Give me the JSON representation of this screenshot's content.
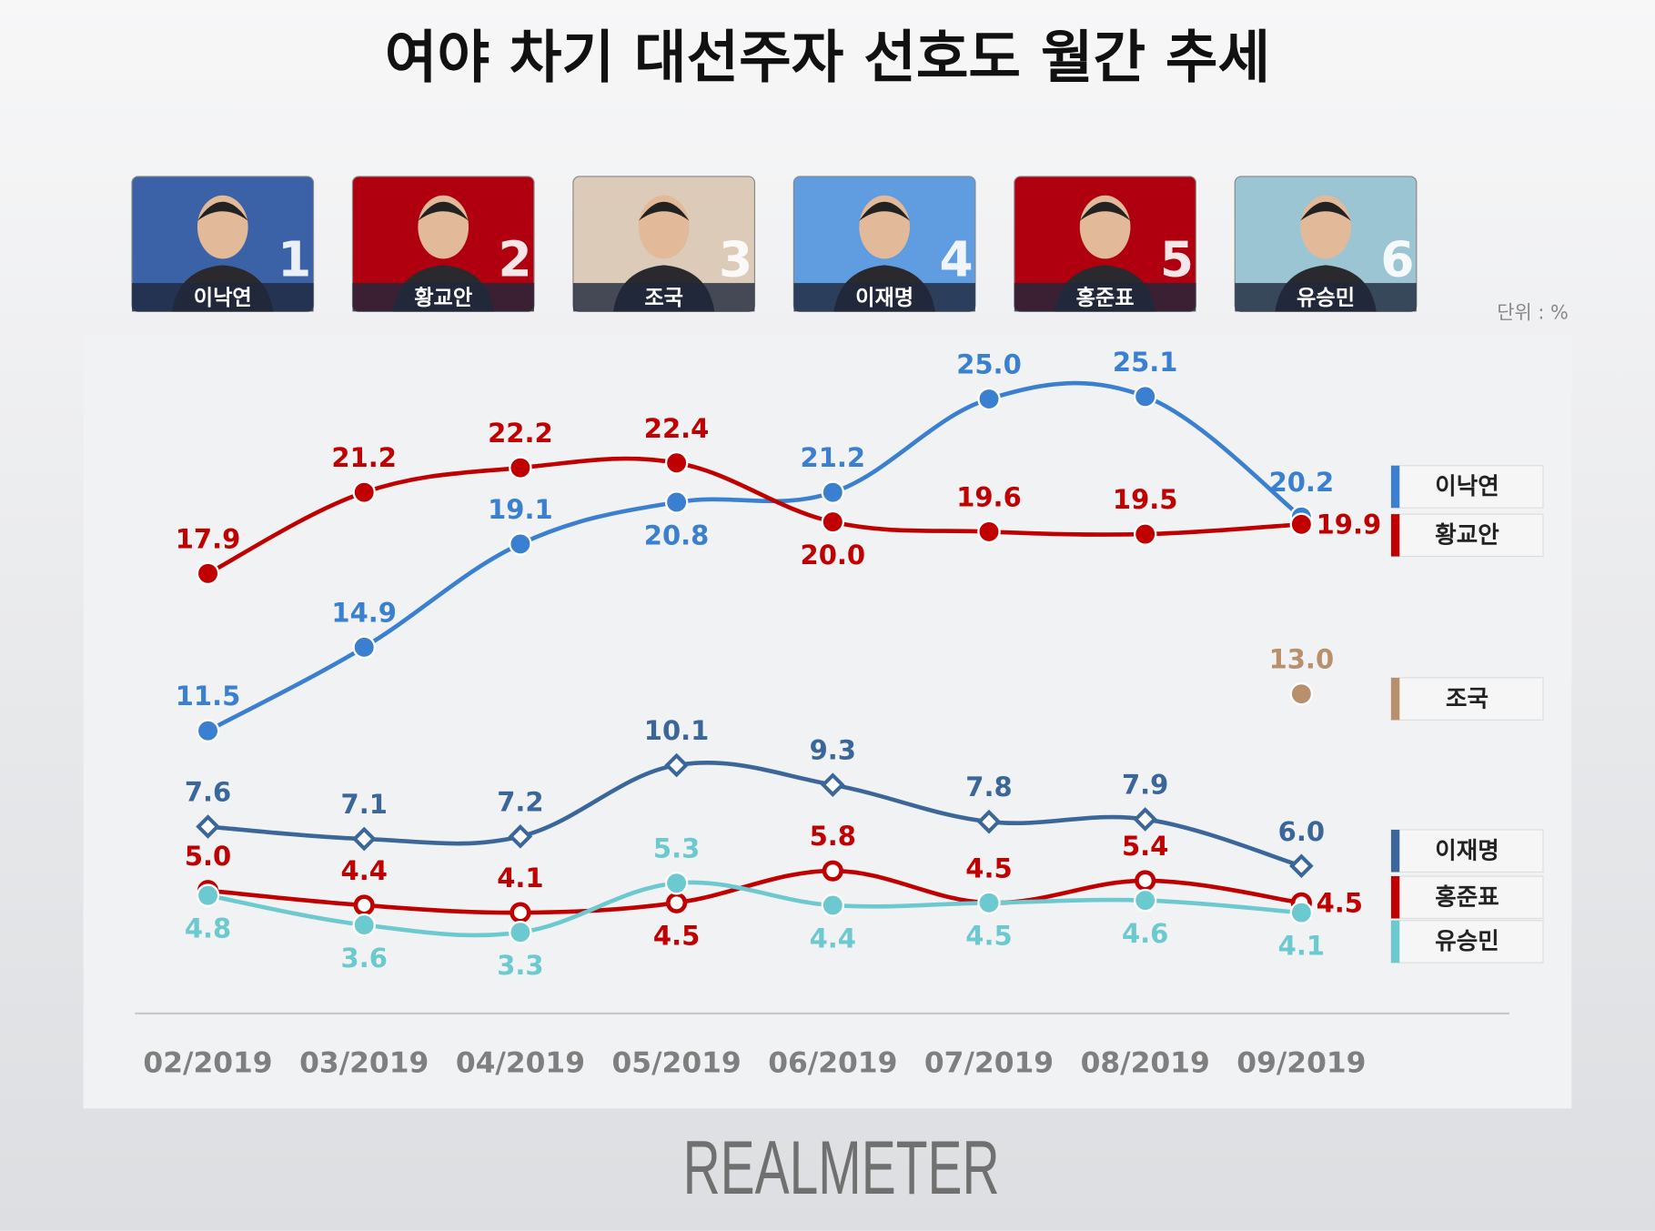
{
  "title": "여야 차기 대선주자 선호도 월간 추세",
  "unit": "단위 : %",
  "brand": "REALMETER",
  "candidates": [
    {
      "name": "이낙연",
      "rank": "1"
    },
    {
      "name": "황교안",
      "rank": "2"
    },
    {
      "name": "조국",
      "rank": "3"
    },
    {
      "name": "이재명",
      "rank": "4"
    },
    {
      "name": "홍준표",
      "rank": "5"
    },
    {
      "name": "유승민",
      "rank": "6"
    }
  ],
  "chart_data": {
    "type": "line",
    "categories": [
      "02/2019",
      "03/2019",
      "04/2019",
      "05/2019",
      "06/2019",
      "07/2019",
      "08/2019",
      "09/2019"
    ],
    "ylim": [
      0,
      28
    ],
    "legend": "right",
    "series": [
      {
        "name": "이낙연",
        "color": "#3a7fd0",
        "marker": "circle",
        "values": [
          11.5,
          14.9,
          19.1,
          20.8,
          21.2,
          25.0,
          25.1,
          20.2
        ],
        "value_labels": [
          "11.5",
          "14.9",
          "19.1",
          "20.8",
          "21.2",
          "25.0",
          "25.1",
          "20.2"
        ]
      },
      {
        "name": "황교안",
        "color": "#c00000",
        "marker": "circle",
        "values": [
          17.9,
          21.2,
          22.2,
          22.4,
          20.0,
          19.6,
          19.5,
          19.9
        ],
        "value_labels": [
          "17.9",
          "21.2",
          "22.2",
          "22.4",
          "20.0",
          "19.6",
          "19.5",
          "19.9"
        ]
      },
      {
        "name": "조국",
        "color": "#b8906c",
        "marker": "circle",
        "values": [
          null,
          null,
          null,
          null,
          null,
          null,
          null,
          13.0
        ],
        "value_labels": [
          null,
          null,
          null,
          null,
          null,
          null,
          null,
          "13.0"
        ]
      },
      {
        "name": "이재명",
        "color": "#3b6699",
        "marker": "open-diamond",
        "values": [
          7.6,
          7.1,
          7.2,
          10.1,
          9.3,
          7.8,
          7.9,
          6.0
        ],
        "value_labels": [
          "7.6",
          "7.1",
          "7.2",
          "10.1",
          "9.3",
          "7.8",
          "7.9",
          "6.0"
        ]
      },
      {
        "name": "홍준표",
        "color": "#c00000",
        "marker": "open-circle",
        "values": [
          5.0,
          4.4,
          4.1,
          4.5,
          5.8,
          4.5,
          5.4,
          4.5
        ],
        "value_labels": [
          "5.0",
          "4.4",
          "4.1",
          "4.5",
          "5.8",
          "4.5",
          "5.4",
          "4.5"
        ]
      },
      {
        "name": "유승민",
        "color": "#6cc9d0",
        "marker": "circle",
        "values": [
          4.8,
          3.6,
          3.3,
          5.3,
          4.4,
          4.5,
          4.6,
          4.1
        ],
        "value_labels": [
          "4.8",
          "3.6",
          "3.3",
          "5.3",
          "4.4",
          "4.5",
          "4.6",
          "4.1"
        ]
      }
    ]
  }
}
